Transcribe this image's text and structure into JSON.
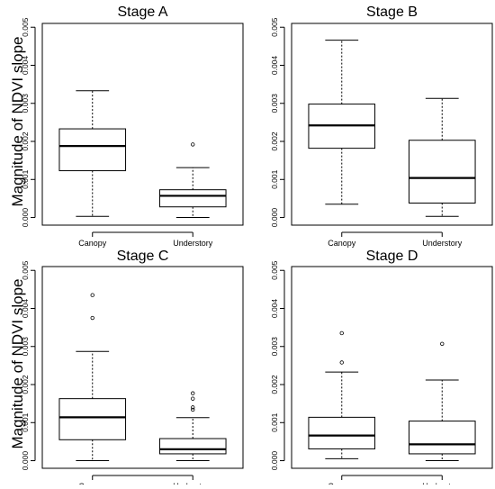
{
  "ylabel": "Magnitude of NDVI slope",
  "chart_data": [
    {
      "type": "box",
      "title": "Stage A",
      "ylim": [
        -0.0002,
        0.0051
      ],
      "yticks": [
        "0.000",
        "0.001",
        "0.002",
        "0.003",
        "0.004",
        "0.005"
      ],
      "categories": [
        "Canopy",
        "Understory"
      ],
      "boxes": [
        {
          "category": "Canopy",
          "min": 3e-05,
          "q1": 0.00123,
          "median": 0.00188,
          "q3": 0.00233,
          "max": 0.00333,
          "outliers": []
        },
        {
          "category": "Understory",
          "min": 0.0,
          "q1": 0.00028,
          "median": 0.00057,
          "q3": 0.00073,
          "max": 0.00131,
          "outliers": [
            0.00192
          ]
        }
      ]
    },
    {
      "type": "box",
      "title": "Stage B",
      "ylim": [
        -0.0002,
        0.0051
      ],
      "yticks": [
        "0.000",
        "0.001",
        "0.002",
        "0.003",
        "0.004",
        "0.005"
      ],
      "categories": [
        "Canopy",
        "Understory"
      ],
      "boxes": [
        {
          "category": "Canopy",
          "min": 0.00035,
          "q1": 0.00182,
          "median": 0.00242,
          "q3": 0.00298,
          "max": 0.00466,
          "outliers": []
        },
        {
          "category": "Understory",
          "min": 3e-05,
          "q1": 0.00038,
          "median": 0.00104,
          "q3": 0.00203,
          "max": 0.00313,
          "outliers": []
        }
      ]
    },
    {
      "type": "box",
      "title": "Stage C",
      "ylim": [
        -0.0002,
        0.0051
      ],
      "yticks": [
        "0.000",
        "0.001",
        "0.002",
        "0.003",
        "0.004",
        "0.005"
      ],
      "categories": [
        "Canopy",
        "Understory"
      ],
      "boxes": [
        {
          "category": "Canopy",
          "min": 0.0,
          "q1": 0.00055,
          "median": 0.00114,
          "q3": 0.00163,
          "max": 0.00287,
          "outliers": [
            0.00375,
            0.00435
          ]
        },
        {
          "category": "Understory",
          "min": 0.0,
          "q1": 0.00018,
          "median": 0.0003,
          "q3": 0.00058,
          "max": 0.00113,
          "outliers": [
            0.00134,
            0.0014,
            0.00163,
            0.00177
          ]
        }
      ]
    },
    {
      "type": "box",
      "title": "Stage D",
      "ylim": [
        -0.0002,
        0.0051
      ],
      "yticks": [
        "0.000",
        "0.001",
        "0.002",
        "0.003",
        "0.004",
        "0.005"
      ],
      "categories": [
        "Canopy",
        "Understory"
      ],
      "boxes": [
        {
          "category": "Canopy",
          "min": 5e-05,
          "q1": 0.00031,
          "median": 0.00066,
          "q3": 0.00114,
          "max": 0.00233,
          "outliers": [
            0.00258,
            0.00335
          ]
        },
        {
          "category": "Understory",
          "min": 0.0,
          "q1": 0.00018,
          "median": 0.00043,
          "q3": 0.00104,
          "max": 0.00212,
          "outliers": [
            0.00307
          ]
        }
      ]
    }
  ]
}
